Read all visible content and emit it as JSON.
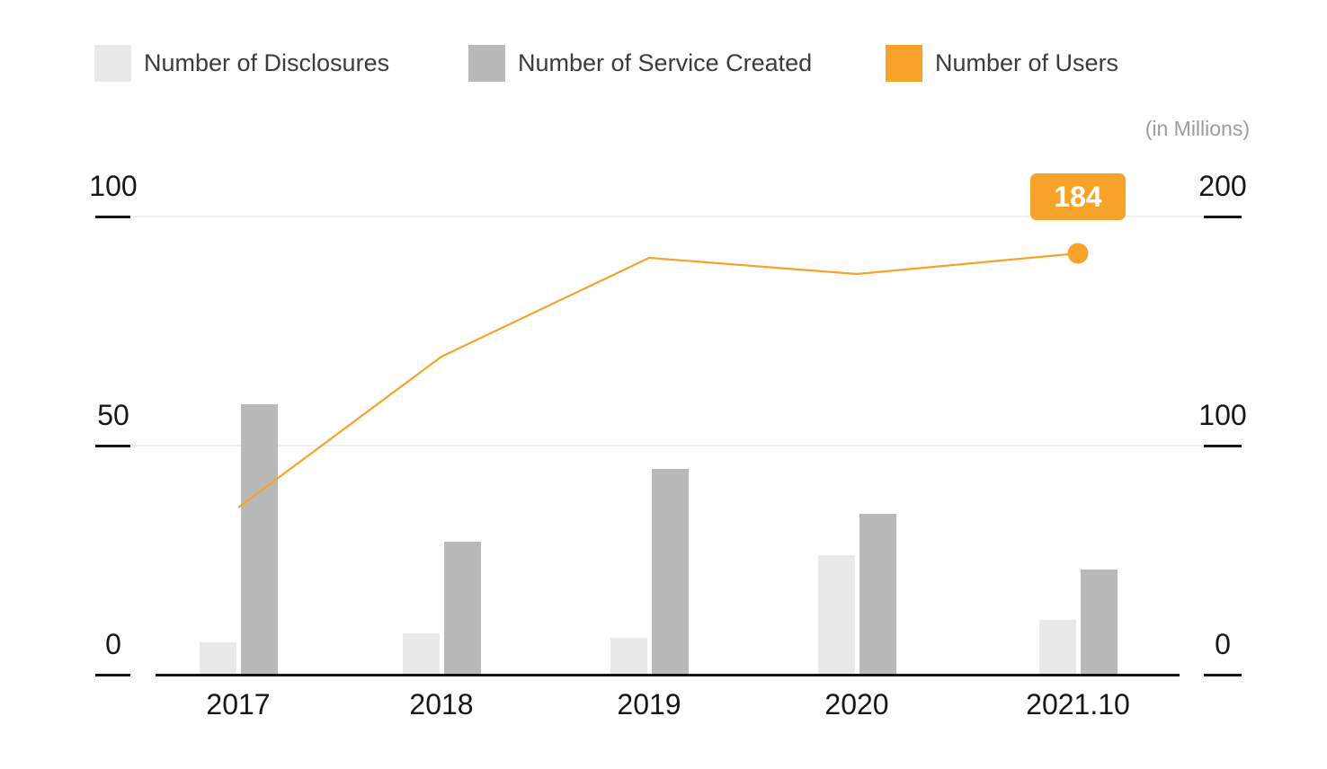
{
  "unit_note": "(in Millions)",
  "annotation": {
    "label": "184",
    "series": "Number of Users",
    "category": "2021.10"
  },
  "chart_data": {
    "type": "combo-bar-line",
    "categories": [
      "2017",
      "2018",
      "2019",
      "2020",
      "2021.10"
    ],
    "series": [
      {
        "name": "Number of Disclosures",
        "type": "bar",
        "axis": "left",
        "color": "#e9e9e9",
        "values": [
          7,
          9,
          8,
          26,
          12
        ]
      },
      {
        "name": "Number of Service Created",
        "type": "bar",
        "axis": "left",
        "color": "#b9b9b9",
        "values": [
          59,
          29,
          45,
          35,
          23
        ]
      },
      {
        "name": "Number of Users",
        "type": "line",
        "axis": "right",
        "color": "#f7a329",
        "values": [
          73,
          139,
          182,
          175,
          184
        ]
      }
    ],
    "left_axis": {
      "ticks": [
        "100",
        "50",
        "0"
      ],
      "range": [
        0,
        100
      ]
    },
    "right_axis": {
      "ticks": [
        "200",
        "100",
        "0"
      ],
      "range": [
        0,
        200
      ]
    },
    "unit_note": "(in Millions)",
    "annotation": {
      "label": "184",
      "series": "Number of Users",
      "category": "2021.10"
    },
    "legend_position": "top-left",
    "grid": "horizontal-light"
  },
  "colors": {
    "disclosures_bar": "#e9e9e9",
    "services_bar": "#b9b9b9",
    "users_line": "#f7a329",
    "axis": "#141414",
    "grid": "#f1f1f1",
    "legend_text": "#3b3b3b",
    "note_text": "#9c9c9c",
    "annotation_text": "#ffffff"
  }
}
